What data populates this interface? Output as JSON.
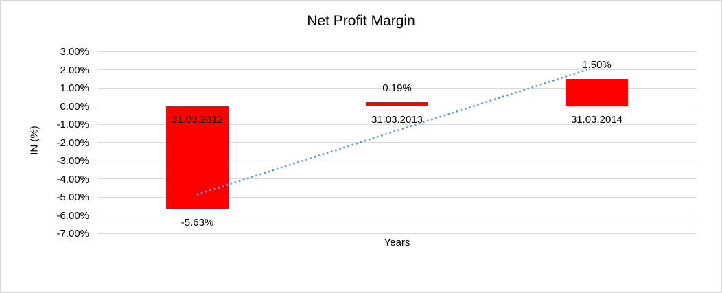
{
  "chart_data": {
    "type": "bar",
    "title": "Net Profit Margin",
    "xlabel": "Years",
    "ylabel": "IN (%)",
    "categories": [
      "31.03.2012",
      "31.03.2013",
      "31.03.2014"
    ],
    "values": [
      -5.63,
      0.19,
      1.5
    ],
    "data_labels": [
      "-5.63%",
      "0.19%",
      "1.50%"
    ],
    "bar_color": "#ff0000",
    "ylim": [
      -7,
      3
    ],
    "ytick_step": 1,
    "ytick_labels": [
      "3.00%",
      "2.00%",
      "1.00%",
      "0.00%",
      "-1.00%",
      "-2.00%",
      "-3.00%",
      "-4.00%",
      "-5.00%",
      "-6.00%",
      "-7.00%"
    ],
    "grid": true,
    "gridline_color": "#d9d9d9",
    "zero_line_color": "#bdbdbd",
    "legend": "none",
    "trendline": {
      "style": "dotted",
      "color": "#5b9bd5",
      "start": {
        "x_frac": 0.166,
        "value": -4.87
      },
      "end": {
        "x_frac": 0.817,
        "value": 1.99
      }
    }
  },
  "frame": {
    "border_color": "#d7d7d7",
    "background_color": "#ffffff"
  }
}
